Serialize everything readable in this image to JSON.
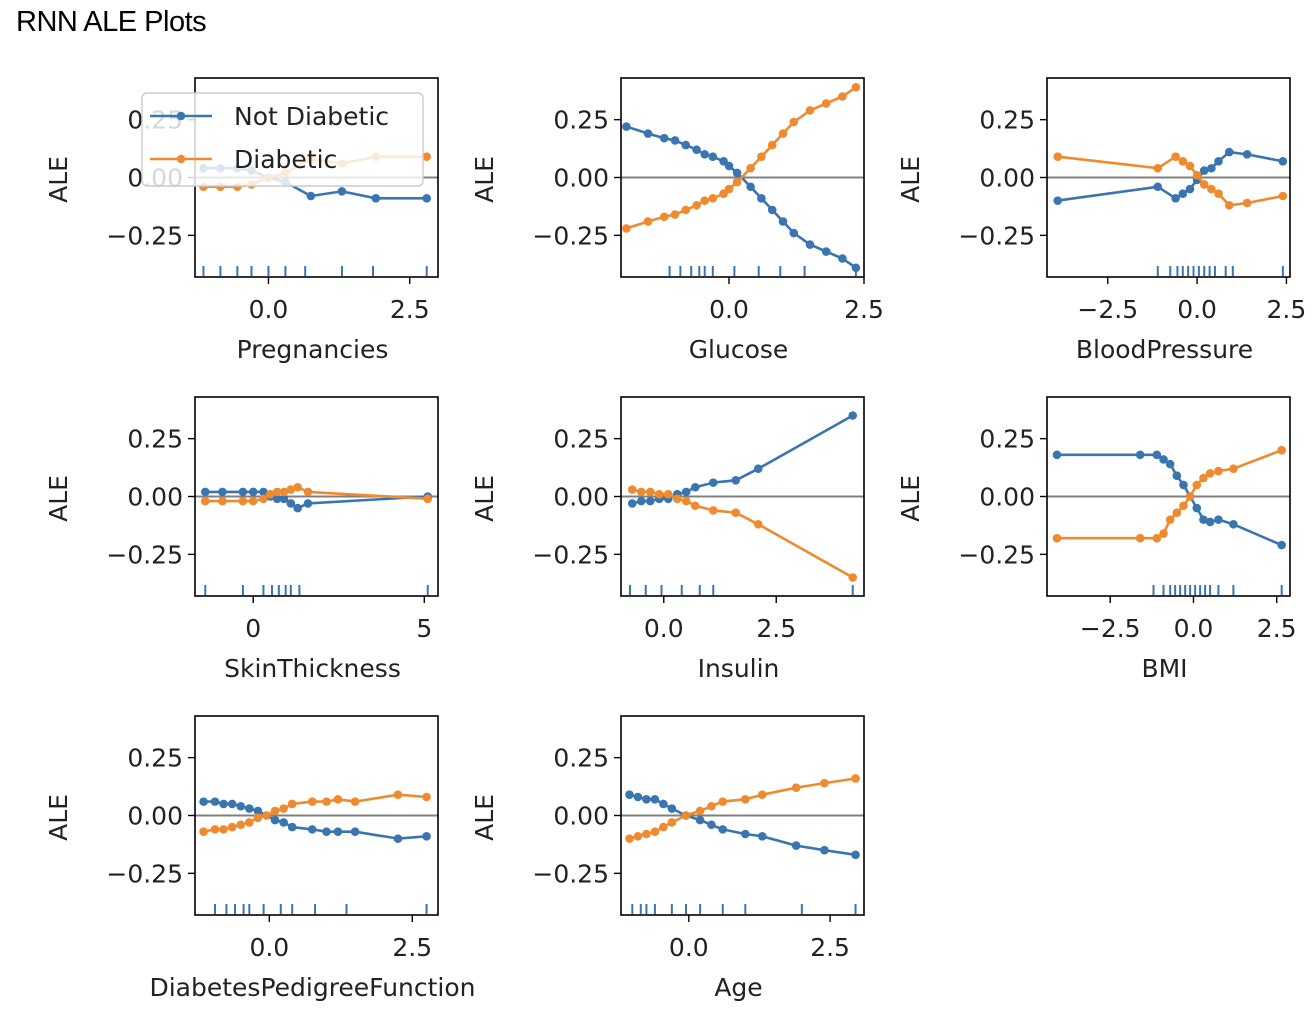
{
  "title": "RNN ALE Plots",
  "colors": {
    "not_diabetic": "#3a75b0",
    "diabetic": "#ef8a2f",
    "zero_line": "#808080",
    "rug": "#3a75b0"
  },
  "legend": {
    "items": [
      "Not Diabetic",
      "Diabetic"
    ],
    "placement": "upper-left of first subplot"
  },
  "chart_data": [
    {
      "type": "line",
      "xlabel": "Pregnancies",
      "ylabel": "ALE",
      "xlim": [
        -1.3,
        3.0
      ],
      "ylim": [
        -0.43,
        0.43
      ],
      "xticks": [
        0.0,
        2.5
      ],
      "xtick_labels": [
        "0.0",
        "2.5"
      ],
      "yticks": [
        0.25,
        0.0,
        -0.25
      ],
      "ytick_labels": [
        "0.25",
        "0.00",
        "−0.25"
      ],
      "series": [
        {
          "name": "Not Diabetic",
          "x": [
            -1.15,
            -0.85,
            -0.55,
            -0.3,
            0.0,
            0.3,
            0.75,
            1.3,
            1.9,
            2.8
          ],
          "y": [
            0.04,
            0.04,
            0.04,
            0.03,
            0.0,
            -0.02,
            -0.08,
            -0.06,
            -0.09,
            -0.09
          ]
        },
        {
          "name": "Diabetic",
          "x": [
            -1.15,
            -0.85,
            -0.55,
            -0.3,
            0.0,
            0.3,
            0.75,
            1.3,
            1.9,
            2.8
          ],
          "y": [
            -0.04,
            -0.04,
            -0.04,
            -0.03,
            0.0,
            0.02,
            0.08,
            0.06,
            0.09,
            0.09
          ]
        }
      ],
      "rug": [
        -1.15,
        -0.85,
        -0.55,
        -0.3,
        0.0,
        0.3,
        0.65,
        1.3,
        1.85,
        2.8
      ]
    },
    {
      "type": "line",
      "xlabel": "Glucose",
      "ylabel": "ALE",
      "xlim": [
        -2.0,
        2.5
      ],
      "ylim": [
        -0.43,
        0.43
      ],
      "xticks": [
        0.0,
        2.5
      ],
      "xtick_labels": [
        "0.0",
        "2.5"
      ],
      "yticks": [
        0.25,
        0.0,
        -0.25
      ],
      "ytick_labels": [
        "0.25",
        "0.00",
        "−0.25"
      ],
      "series": [
        {
          "name": "Not Diabetic",
          "x": [
            -1.9,
            -1.5,
            -1.2,
            -1.0,
            -0.8,
            -0.6,
            -0.45,
            -0.3,
            -0.1,
            0.0,
            0.15,
            0.4,
            0.6,
            0.8,
            1.0,
            1.2,
            1.5,
            1.8,
            2.1,
            2.35
          ],
          "y": [
            0.22,
            0.19,
            0.17,
            0.16,
            0.14,
            0.12,
            0.1,
            0.09,
            0.07,
            0.05,
            0.02,
            -0.04,
            -0.09,
            -0.14,
            -0.19,
            -0.24,
            -0.29,
            -0.32,
            -0.35,
            -0.39
          ]
        },
        {
          "name": "Diabetic",
          "x": [
            -1.9,
            -1.5,
            -1.2,
            -1.0,
            -0.8,
            -0.6,
            -0.45,
            -0.3,
            -0.1,
            0.0,
            0.15,
            0.4,
            0.6,
            0.8,
            1.0,
            1.2,
            1.5,
            1.8,
            2.1,
            2.35
          ],
          "y": [
            -0.22,
            -0.19,
            -0.17,
            -0.16,
            -0.14,
            -0.12,
            -0.1,
            -0.09,
            -0.07,
            -0.05,
            -0.02,
            0.04,
            0.09,
            0.14,
            0.19,
            0.24,
            0.29,
            0.32,
            0.35,
            0.39
          ]
        }
      ],
      "rug": [
        -1.1,
        -0.9,
        -0.7,
        -0.55,
        -0.45,
        -0.3,
        0.1,
        0.55,
        0.95,
        1.4,
        2.35
      ]
    },
    {
      "type": "line",
      "xlabel": "BloodPressure",
      "ylabel": "ALE",
      "xlim": [
        -4.2,
        2.6
      ],
      "ylim": [
        -0.43,
        0.43
      ],
      "xticks": [
        -2.5,
        0.0,
        2.5
      ],
      "xtick_labels": [
        "−2.5",
        "0.0",
        "2.5"
      ],
      "yticks": [
        0.25,
        0.0,
        -0.25
      ],
      "ytick_labels": [
        "0.25",
        "0.00",
        "−0.25"
      ],
      "series": [
        {
          "name": "Not Diabetic",
          "x": [
            -3.9,
            -1.1,
            -0.6,
            -0.4,
            -0.2,
            0.0,
            0.2,
            0.4,
            0.6,
            0.9,
            1.4,
            2.4
          ],
          "y": [
            -0.1,
            -0.04,
            -0.09,
            -0.07,
            -0.05,
            -0.01,
            0.03,
            0.04,
            0.07,
            0.11,
            0.1,
            0.07
          ]
        },
        {
          "name": "Diabetic",
          "x": [
            -3.9,
            -1.1,
            -0.6,
            -0.4,
            -0.2,
            0.0,
            0.2,
            0.4,
            0.6,
            0.9,
            1.4,
            2.4
          ],
          "y": [
            0.09,
            0.04,
            0.09,
            0.07,
            0.05,
            0.01,
            -0.03,
            -0.05,
            -0.07,
            -0.12,
            -0.11,
            -0.08
          ]
        }
      ],
      "rug": [
        -1.1,
        -0.75,
        -0.55,
        -0.4,
        -0.25,
        -0.1,
        0.05,
        0.2,
        0.35,
        0.5,
        0.8,
        1.0,
        2.4
      ]
    },
    {
      "type": "line",
      "xlabel": "SkinThickness",
      "ylabel": "ALE",
      "xlim": [
        -1.7,
        5.4
      ],
      "ylim": [
        -0.43,
        0.43
      ],
      "xticks": [
        0,
        5
      ],
      "xtick_labels": [
        "0",
        "5"
      ],
      "yticks": [
        0.25,
        0.0,
        -0.25
      ],
      "ytick_labels": [
        "0.25",
        "0.00",
        "−0.25"
      ],
      "series": [
        {
          "name": "Not Diabetic",
          "x": [
            -1.4,
            -0.9,
            -0.3,
            0.0,
            0.3,
            0.5,
            0.7,
            0.9,
            1.1,
            1.3,
            1.6,
            5.1
          ],
          "y": [
            0.02,
            0.02,
            0.02,
            0.02,
            0.02,
            0.0,
            -0.01,
            -0.01,
            -0.03,
            -0.05,
            -0.03,
            0.0
          ]
        },
        {
          "name": "Diabetic",
          "x": [
            -1.4,
            -0.9,
            -0.3,
            0.0,
            0.3,
            0.5,
            0.7,
            0.9,
            1.1,
            1.3,
            1.6,
            5.1
          ],
          "y": [
            -0.02,
            -0.02,
            -0.02,
            -0.02,
            -0.01,
            0.01,
            0.02,
            0.02,
            0.03,
            0.04,
            0.02,
            -0.01
          ]
        }
      ],
      "rug": [
        -1.4,
        -0.3,
        0.3,
        0.55,
        0.75,
        0.95,
        1.1,
        1.35,
        5.1
      ]
    },
    {
      "type": "line",
      "xlabel": "Insulin",
      "ylabel": "ALE",
      "xlim": [
        -0.95,
        4.45
      ],
      "ylim": [
        -0.43,
        0.43
      ],
      "xticks": [
        0.0,
        2.5
      ],
      "xtick_labels": [
        "0.0",
        "2.5"
      ],
      "yticks": [
        0.25,
        0.0,
        -0.25
      ],
      "ytick_labels": [
        "0.25",
        "0.00",
        "−0.25"
      ],
      "series": [
        {
          "name": "Not Diabetic",
          "x": [
            -0.7,
            -0.5,
            -0.3,
            -0.1,
            0.1,
            0.3,
            0.5,
            0.7,
            1.1,
            1.6,
            2.1,
            4.2
          ],
          "y": [
            -0.03,
            -0.02,
            -0.02,
            -0.01,
            -0.01,
            0.01,
            0.02,
            0.04,
            0.06,
            0.07,
            0.12,
            0.35
          ]
        },
        {
          "name": "Diabetic",
          "x": [
            -0.7,
            -0.5,
            -0.3,
            -0.1,
            0.1,
            0.3,
            0.5,
            0.7,
            1.1,
            1.6,
            2.1,
            4.2
          ],
          "y": [
            0.03,
            0.02,
            0.02,
            0.01,
            0.01,
            -0.01,
            -0.02,
            -0.04,
            -0.06,
            -0.07,
            -0.12,
            -0.35
          ]
        }
      ],
      "rug": [
        -0.75,
        -0.4,
        -0.05,
        0.4,
        0.8,
        1.1,
        4.2
      ]
    },
    {
      "type": "line",
      "xlabel": "BMI",
      "ylabel": "ALE",
      "xlim": [
        -4.4,
        2.9
      ],
      "ylim": [
        -0.43,
        0.43
      ],
      "xticks": [
        -2.5,
        0.0,
        2.5
      ],
      "xtick_labels": [
        "−2.5",
        "0.0",
        "2.5"
      ],
      "yticks": [
        0.25,
        0.0,
        -0.25
      ],
      "ytick_labels": [
        "0.25",
        "0.00",
        "−0.25"
      ],
      "series": [
        {
          "name": "Not Diabetic",
          "x": [
            -4.1,
            -1.6,
            -1.1,
            -0.9,
            -0.7,
            -0.5,
            -0.3,
            -0.1,
            0.1,
            0.3,
            0.5,
            0.75,
            1.2,
            2.65
          ],
          "y": [
            0.18,
            0.18,
            0.18,
            0.16,
            0.14,
            0.09,
            0.05,
            0.0,
            -0.05,
            -0.1,
            -0.11,
            -0.1,
            -0.12,
            -0.21
          ]
        },
        {
          "name": "Diabetic",
          "x": [
            -4.1,
            -1.6,
            -1.1,
            -0.9,
            -0.7,
            -0.5,
            -0.3,
            -0.1,
            0.1,
            0.3,
            0.5,
            0.75,
            1.2,
            2.65
          ],
          "y": [
            -0.18,
            -0.18,
            -0.18,
            -0.16,
            -0.1,
            -0.07,
            -0.04,
            0.0,
            0.05,
            0.08,
            0.1,
            0.11,
            0.12,
            0.2
          ]
        }
      ],
      "rug": [
        -1.2,
        -0.9,
        -0.7,
        -0.55,
        -0.4,
        -0.25,
        -0.1,
        0.05,
        0.2,
        0.35,
        0.5,
        0.75,
        1.2,
        2.65
      ]
    },
    {
      "type": "line",
      "xlabel": "DiabetesPedigreeFunction",
      "ylabel": "ALE",
      "xlim": [
        -1.3,
        2.95
      ],
      "ylim": [
        -0.43,
        0.43
      ],
      "xticks": [
        0.0,
        2.5
      ],
      "xtick_labels": [
        "0.0",
        "2.5"
      ],
      "yticks": [
        0.25,
        0.0,
        -0.25
      ],
      "ytick_labels": [
        "0.25",
        "0.00",
        "−0.25"
      ],
      "series": [
        {
          "name": "Not Diabetic",
          "x": [
            -1.15,
            -0.95,
            -0.8,
            -0.65,
            -0.5,
            -0.35,
            -0.2,
            -0.05,
            0.1,
            0.25,
            0.4,
            0.75,
            1.0,
            1.2,
            1.5,
            2.25,
            2.75
          ],
          "y": [
            0.06,
            0.06,
            0.05,
            0.05,
            0.04,
            0.03,
            0.02,
            0.0,
            -0.02,
            -0.03,
            -0.05,
            -0.06,
            -0.07,
            -0.07,
            -0.07,
            -0.1,
            -0.09
          ]
        },
        {
          "name": "Diabetic",
          "x": [
            -1.15,
            -0.95,
            -0.8,
            -0.65,
            -0.5,
            -0.35,
            -0.2,
            -0.05,
            0.1,
            0.25,
            0.4,
            0.75,
            1.0,
            1.2,
            1.5,
            2.25,
            2.75
          ],
          "y": [
            -0.07,
            -0.06,
            -0.06,
            -0.05,
            -0.04,
            -0.03,
            -0.01,
            0.0,
            0.02,
            0.03,
            0.05,
            0.06,
            0.06,
            0.07,
            0.06,
            0.09,
            0.08
          ]
        }
      ],
      "rug": [
        -0.95,
        -0.75,
        -0.6,
        -0.45,
        -0.35,
        -0.1,
        0.2,
        0.4,
        0.8,
        1.35,
        2.75
      ]
    },
    {
      "type": "line",
      "xlabel": "Age",
      "ylabel": "ALE",
      "xlim": [
        -1.2,
        3.1
      ],
      "ylim": [
        -0.43,
        0.43
      ],
      "xticks": [
        0.0,
        2.5
      ],
      "xtick_labels": [
        "0.0",
        "2.5"
      ],
      "yticks": [
        0.25,
        0.0,
        -0.25
      ],
      "ytick_labels": [
        "0.25",
        "0.00",
        "−0.25"
      ],
      "series": [
        {
          "name": "Not Diabetic",
          "x": [
            -1.05,
            -0.9,
            -0.75,
            -0.6,
            -0.45,
            -0.3,
            -0.05,
            0.2,
            0.4,
            0.6,
            1.0,
            1.3,
            1.9,
            2.4,
            2.95
          ],
          "y": [
            0.09,
            0.08,
            0.07,
            0.07,
            0.05,
            0.03,
            0.0,
            -0.02,
            -0.04,
            -0.06,
            -0.08,
            -0.09,
            -0.13,
            -0.15,
            -0.17
          ]
        },
        {
          "name": "Diabetic",
          "x": [
            -1.05,
            -0.9,
            -0.75,
            -0.6,
            -0.45,
            -0.3,
            -0.05,
            0.2,
            0.4,
            0.6,
            1.0,
            1.3,
            1.9,
            2.4,
            2.95
          ],
          "y": [
            -0.1,
            -0.09,
            -0.08,
            -0.07,
            -0.05,
            -0.03,
            0.0,
            0.02,
            0.04,
            0.06,
            0.07,
            0.09,
            0.12,
            0.14,
            0.16
          ]
        }
      ],
      "rug": [
        -1.0,
        -0.85,
        -0.75,
        -0.6,
        -0.3,
        -0.05,
        0.2,
        0.6,
        1.0,
        2.0,
        2.95
      ]
    }
  ]
}
